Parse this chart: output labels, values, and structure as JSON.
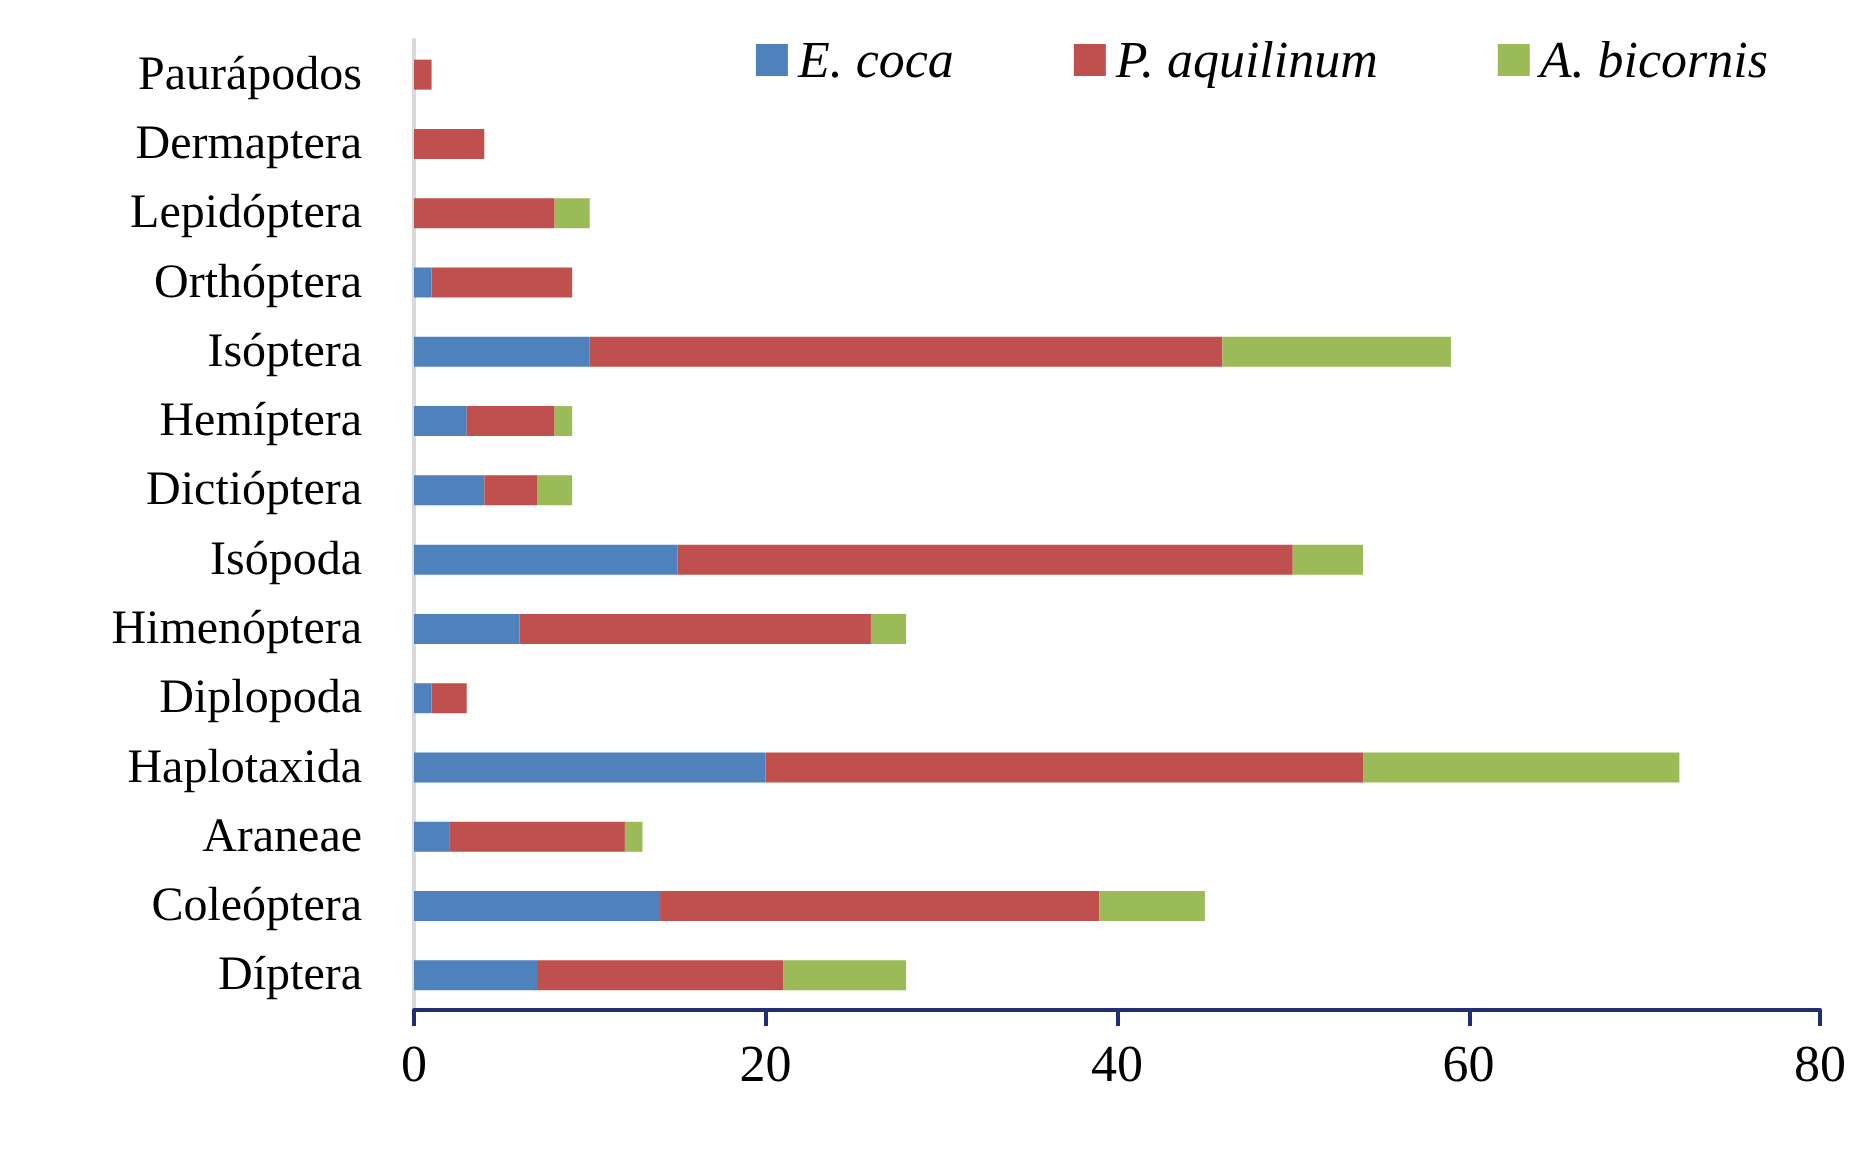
{
  "chart_data": {
    "type": "bar",
    "orientation": "horizontal",
    "stacked": true,
    "categories": [
      "Paurápodos",
      "Dermaptera",
      "Lepidóptera",
      "Orthóptera",
      "Isóptera",
      "Hemíptera",
      "Dictióptera",
      "Isópoda",
      "Himenóptera",
      "Diplopoda",
      "Haplotaxida",
      "Araneae",
      "Coleóptera",
      "Díptera"
    ],
    "series": [
      {
        "name": "E. coca",
        "color": "#4f81bd",
        "values": [
          0,
          0,
          0,
          1,
          10,
          3,
          4,
          15,
          6,
          1,
          20,
          2,
          14,
          7
        ]
      },
      {
        "name": "P. aquilinum",
        "color": "#c0504d",
        "values": [
          1,
          4,
          8,
          8,
          36,
          5,
          3,
          35,
          20,
          2,
          34,
          10,
          25,
          14
        ]
      },
      {
        "name": "A. bicornis",
        "color": "#9bbb59",
        "values": [
          0,
          0,
          2,
          0,
          13,
          1,
          2,
          4,
          2,
          0,
          18,
          1,
          6,
          7
        ]
      }
    ],
    "xlim": [
      0,
      80
    ],
    "xticks": [
      0,
      20,
      40,
      60,
      80
    ],
    "grid": false,
    "legend": "top right"
  }
}
